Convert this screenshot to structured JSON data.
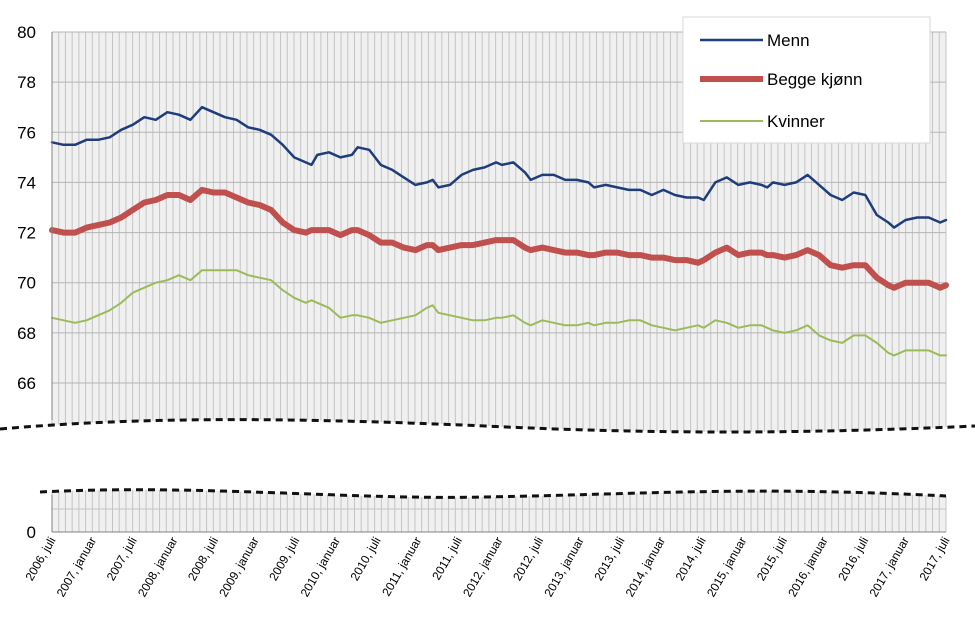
{
  "chart_data": {
    "type": "line",
    "title": "",
    "xlabel": "",
    "ylabel": "",
    "ylim": [
      66,
      80
    ],
    "y_axis_break": {
      "between": [
        0,
        66
      ],
      "lower_ticks": [
        0
      ]
    },
    "yticks": [
      66,
      68,
      70,
      72,
      74,
      76,
      78,
      80
    ],
    "grid": true,
    "legend_position": "top-right",
    "x_tick_labels": [
      "2006, juli",
      "2007, januar",
      "2007, juli",
      "2008, januar",
      "2008, juli",
      "2009, januar",
      "2009, juli",
      "2010, januar",
      "2010, juli",
      "2011, januar",
      "2011, juli",
      "2012, januar",
      "2012, juli",
      "2013, januar",
      "2013, juli",
      "2014, januar",
      "2014, juli",
      "2015, januar",
      "2015, juli",
      "2016, januar",
      "2016, juli",
      "2017, januar",
      "2017, juli"
    ],
    "x_months": [
      0,
      132
    ],
    "series": [
      {
        "name": "Menn",
        "color": "#1f3d7a",
        "width": 2.5,
        "points": [
          [
            0,
            75.6
          ],
          [
            2,
            75.5
          ],
          [
            4,
            75.5
          ],
          [
            6,
            75.7
          ],
          [
            8,
            75.7
          ],
          [
            10,
            75.8
          ],
          [
            12,
            76.1
          ],
          [
            14,
            76.3
          ],
          [
            16,
            76.6
          ],
          [
            18,
            76.5
          ],
          [
            20,
            76.8
          ],
          [
            22,
            76.7
          ],
          [
            24,
            76.5
          ],
          [
            26,
            77.0
          ],
          [
            28,
            76.8
          ],
          [
            30,
            76.6
          ],
          [
            32,
            76.5
          ],
          [
            34,
            76.2
          ],
          [
            36,
            76.1
          ],
          [
            38,
            75.9
          ],
          [
            40,
            75.5
          ],
          [
            42,
            75.0
          ],
          [
            44,
            74.8
          ],
          [
            45,
            74.7
          ],
          [
            46,
            75.1
          ],
          [
            48,
            75.2
          ],
          [
            50,
            75.0
          ],
          [
            52,
            75.1
          ],
          [
            53,
            75.4
          ],
          [
            55,
            75.3
          ],
          [
            57,
            74.7
          ],
          [
            59,
            74.5
          ],
          [
            61,
            74.2
          ],
          [
            63,
            73.9
          ],
          [
            65,
            74.0
          ],
          [
            66,
            74.1
          ],
          [
            67,
            73.8
          ],
          [
            69,
            73.9
          ],
          [
            71,
            74.3
          ],
          [
            73,
            74.5
          ],
          [
            75,
            74.6
          ],
          [
            77,
            74.8
          ],
          [
            78,
            74.7
          ],
          [
            80,
            74.8
          ],
          [
            82,
            74.4
          ],
          [
            83,
            74.1
          ],
          [
            85,
            74.3
          ],
          [
            87,
            74.3
          ],
          [
            89,
            74.1
          ],
          [
            91,
            74.1
          ],
          [
            93,
            74.0
          ],
          [
            94,
            73.8
          ],
          [
            96,
            73.9
          ],
          [
            98,
            73.8
          ],
          [
            100,
            73.7
          ],
          [
            102,
            73.7
          ],
          [
            104,
            73.5
          ],
          [
            106,
            73.7
          ],
          [
            108,
            73.5
          ],
          [
            110,
            73.4
          ],
          [
            112,
            73.4
          ],
          [
            113,
            73.3
          ],
          [
            115,
            74.0
          ],
          [
            117,
            74.2
          ],
          [
            119,
            73.9
          ],
          [
            121,
            74.0
          ],
          [
            123,
            73.9
          ],
          [
            124,
            73.8
          ],
          [
            125,
            74.0
          ],
          [
            127,
            73.9
          ],
          [
            129,
            74.0
          ],
          [
            131,
            74.3
          ],
          [
            133,
            73.9
          ],
          [
            135,
            73.5
          ],
          [
            137,
            73.3
          ],
          [
            139,
            73.6
          ],
          [
            141,
            73.5
          ],
          [
            143,
            72.7
          ],
          [
            145,
            72.4
          ],
          [
            146,
            72.2
          ],
          [
            148,
            72.5
          ],
          [
            150,
            72.6
          ],
          [
            152,
            72.6
          ],
          [
            154,
            72.4
          ],
          [
            155,
            72.5
          ]
        ]
      },
      {
        "name": "Begge kjønn",
        "color": "#c0504d",
        "width": 6,
        "points": [
          [
            0,
            72.1
          ],
          [
            2,
            72.0
          ],
          [
            4,
            72.0
          ],
          [
            6,
            72.2
          ],
          [
            8,
            72.3
          ],
          [
            10,
            72.4
          ],
          [
            12,
            72.6
          ],
          [
            14,
            72.9
          ],
          [
            16,
            73.2
          ],
          [
            18,
            73.3
          ],
          [
            20,
            73.5
          ],
          [
            22,
            73.5
          ],
          [
            24,
            73.3
          ],
          [
            26,
            73.7
          ],
          [
            28,
            73.6
          ],
          [
            30,
            73.6
          ],
          [
            32,
            73.4
          ],
          [
            34,
            73.2
          ],
          [
            36,
            73.1
          ],
          [
            38,
            72.9
          ],
          [
            40,
            72.4
          ],
          [
            42,
            72.1
          ],
          [
            44,
            72.0
          ],
          [
            45,
            72.1
          ],
          [
            46,
            72.1
          ],
          [
            48,
            72.1
          ],
          [
            50,
            71.9
          ],
          [
            52,
            72.1
          ],
          [
            53,
            72.1
          ],
          [
            55,
            71.9
          ],
          [
            57,
            71.6
          ],
          [
            59,
            71.6
          ],
          [
            61,
            71.4
          ],
          [
            63,
            71.3
          ],
          [
            65,
            71.5
          ],
          [
            66,
            71.5
          ],
          [
            67,
            71.3
          ],
          [
            69,
            71.4
          ],
          [
            71,
            71.5
          ],
          [
            73,
            71.5
          ],
          [
            75,
            71.6
          ],
          [
            77,
            71.7
          ],
          [
            78,
            71.7
          ],
          [
            80,
            71.7
          ],
          [
            82,
            71.4
          ],
          [
            83,
            71.3
          ],
          [
            85,
            71.4
          ],
          [
            87,
            71.3
          ],
          [
            89,
            71.2
          ],
          [
            91,
            71.2
          ],
          [
            93,
            71.1
          ],
          [
            94,
            71.1
          ],
          [
            96,
            71.2
          ],
          [
            98,
            71.2
          ],
          [
            100,
            71.1
          ],
          [
            102,
            71.1
          ],
          [
            104,
            71.0
          ],
          [
            106,
            71.0
          ],
          [
            108,
            70.9
          ],
          [
            110,
            70.9
          ],
          [
            112,
            70.8
          ],
          [
            113,
            70.9
          ],
          [
            115,
            71.2
          ],
          [
            117,
            71.4
          ],
          [
            119,
            71.1
          ],
          [
            121,
            71.2
          ],
          [
            123,
            71.2
          ],
          [
            124,
            71.1
          ],
          [
            125,
            71.1
          ],
          [
            127,
            71.0
          ],
          [
            129,
            71.1
          ],
          [
            131,
            71.3
          ],
          [
            133,
            71.1
          ],
          [
            135,
            70.7
          ],
          [
            137,
            70.6
          ],
          [
            139,
            70.7
          ],
          [
            141,
            70.7
          ],
          [
            143,
            70.2
          ],
          [
            145,
            69.9
          ],
          [
            146,
            69.8
          ],
          [
            148,
            70.0
          ],
          [
            150,
            70.0
          ],
          [
            152,
            70.0
          ],
          [
            154,
            69.8
          ],
          [
            155,
            69.9
          ]
        ]
      },
      {
        "name": "Kvinner",
        "color": "#9bbb59",
        "width": 2,
        "points": [
          [
            0,
            68.6
          ],
          [
            2,
            68.5
          ],
          [
            4,
            68.4
          ],
          [
            6,
            68.5
          ],
          [
            8,
            68.7
          ],
          [
            10,
            68.9
          ],
          [
            12,
            69.2
          ],
          [
            14,
            69.6
          ],
          [
            16,
            69.8
          ],
          [
            18,
            70.0
          ],
          [
            20,
            70.1
          ],
          [
            22,
            70.3
          ],
          [
            24,
            70.1
          ],
          [
            26,
            70.5
          ],
          [
            28,
            70.5
          ],
          [
            30,
            70.5
          ],
          [
            32,
            70.5
          ],
          [
            34,
            70.3
          ],
          [
            36,
            70.2
          ],
          [
            38,
            70.1
          ],
          [
            40,
            69.7
          ],
          [
            42,
            69.4
          ],
          [
            44,
            69.2
          ],
          [
            45,
            69.3
          ],
          [
            46,
            69.2
          ],
          [
            48,
            69.0
          ],
          [
            50,
            68.6
          ],
          [
            52,
            68.7
          ],
          [
            53,
            68.7
          ],
          [
            55,
            68.6
          ],
          [
            57,
            68.4
          ],
          [
            59,
            68.5
          ],
          [
            61,
            68.6
          ],
          [
            63,
            68.7
          ],
          [
            65,
            69.0
          ],
          [
            66,
            69.1
          ],
          [
            67,
            68.8
          ],
          [
            69,
            68.7
          ],
          [
            71,
            68.6
          ],
          [
            73,
            68.5
          ],
          [
            75,
            68.5
          ],
          [
            77,
            68.6
          ],
          [
            78,
            68.6
          ],
          [
            80,
            68.7
          ],
          [
            82,
            68.4
          ],
          [
            83,
            68.3
          ],
          [
            85,
            68.5
          ],
          [
            87,
            68.4
          ],
          [
            89,
            68.3
          ],
          [
            91,
            68.3
          ],
          [
            93,
            68.4
          ],
          [
            94,
            68.3
          ],
          [
            96,
            68.4
          ],
          [
            98,
            68.4
          ],
          [
            100,
            68.5
          ],
          [
            102,
            68.5
          ],
          [
            104,
            68.3
          ],
          [
            106,
            68.2
          ],
          [
            108,
            68.1
          ],
          [
            110,
            68.2
          ],
          [
            112,
            68.3
          ],
          [
            113,
            68.2
          ],
          [
            115,
            68.5
          ],
          [
            117,
            68.4
          ],
          [
            119,
            68.2
          ],
          [
            121,
            68.3
          ],
          [
            123,
            68.3
          ],
          [
            124,
            68.2
          ],
          [
            125,
            68.1
          ],
          [
            127,
            68.0
          ],
          [
            129,
            68.1
          ],
          [
            131,
            68.3
          ],
          [
            133,
            67.9
          ],
          [
            135,
            67.7
          ],
          [
            137,
            67.6
          ],
          [
            139,
            67.9
          ],
          [
            141,
            67.9
          ],
          [
            143,
            67.6
          ],
          [
            145,
            67.2
          ],
          [
            146,
            67.1
          ],
          [
            148,
            67.3
          ],
          [
            150,
            67.3
          ],
          [
            152,
            67.3
          ],
          [
            154,
            67.1
          ],
          [
            155,
            67.1
          ]
        ]
      }
    ]
  }
}
